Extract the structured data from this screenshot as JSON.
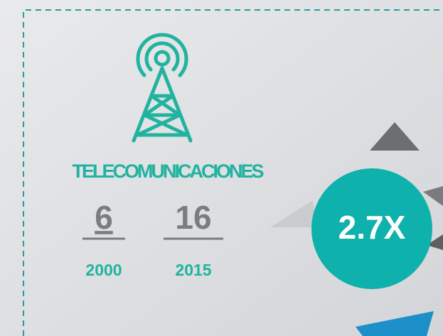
{
  "sector": "TELECOMUNICACIONES",
  "stats": [
    {
      "value": "6",
      "year": "2000"
    },
    {
      "value": "16",
      "year": "2015"
    }
  ],
  "growth": "2.7X"
}
